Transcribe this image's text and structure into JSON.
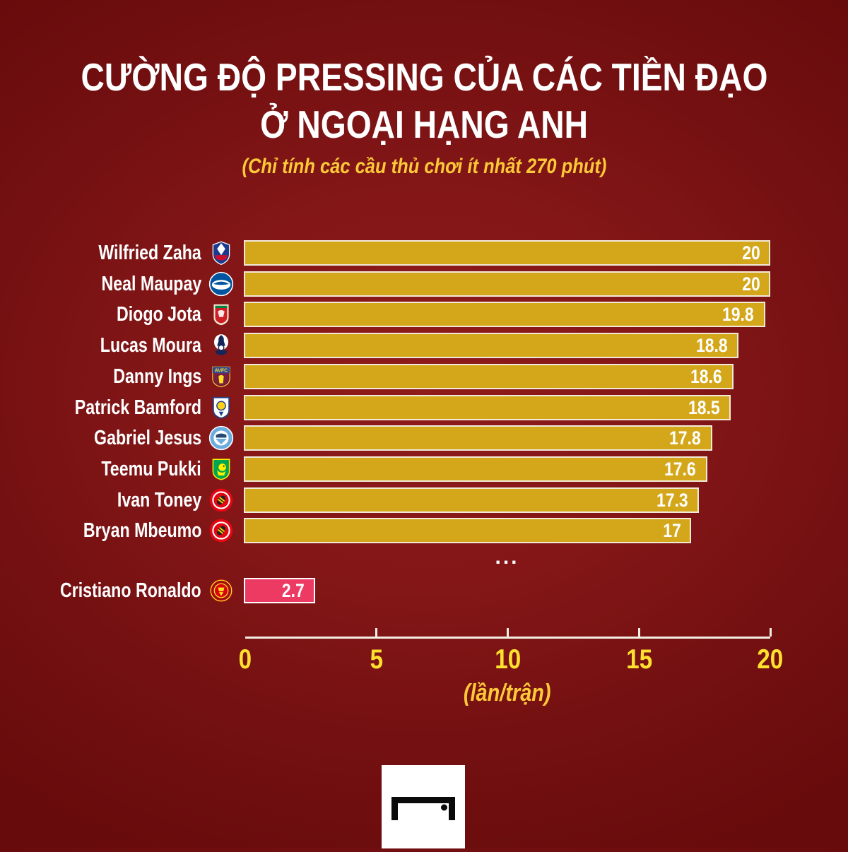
{
  "title": {
    "line1": "CƯỜNG ĐỘ PRESSING CỦA CÁC TIỀN ĐẠO",
    "line2": "Ở NGOẠI HẠNG ANH",
    "color": "#ffffff"
  },
  "subtitle": {
    "text": "(Chỉ tính các cầu thủ chơi ít nhất 270 phút)",
    "color": "#fdc938"
  },
  "chart_data": {
    "type": "bar",
    "orientation": "horizontal",
    "title": "CƯỜNG ĐỘ PRESSING CỦA CÁC TIỀN ĐẠO Ở NGOẠI HẠNG ANH",
    "subtitle": "(Chỉ tính các cầu thủ chơi ít nhất 270 phút)",
    "xlabel": "(lần/trận)",
    "xlim": [
      0,
      20
    ],
    "xticks": [
      0,
      5,
      10,
      15,
      20
    ],
    "grid": false,
    "legend": false,
    "ellipsis": "...",
    "categories": [
      "Wilfried Zaha",
      "Neal Maupay",
      "Diogo Jota",
      "Lucas Moura",
      "Danny Ings",
      "Patrick Bamford",
      "Gabriel Jesus",
      "Teemu Pukki",
      "Ivan Toney",
      "Bryan Mbeumo",
      "Cristiano Ronaldo"
    ],
    "values": [
      20,
      20,
      19.8,
      18.8,
      18.6,
      18.5,
      17.8,
      17.6,
      17.3,
      17,
      2.7
    ],
    "players": [
      {
        "name": "Wilfried Zaha",
        "club": "Crystal Palace",
        "badge": "crystal-palace-badge-icon",
        "value": 20,
        "label": "20",
        "highlight": false
      },
      {
        "name": "Neal Maupay",
        "club": "Brighton",
        "badge": "brighton-badge-icon",
        "value": 20,
        "label": "20",
        "highlight": false
      },
      {
        "name": "Diogo Jota",
        "club": "Liverpool",
        "badge": "liverpool-badge-icon",
        "value": 19.8,
        "label": "19.8",
        "highlight": false
      },
      {
        "name": "Lucas Moura",
        "club": "Tottenham",
        "badge": "tottenham-badge-icon",
        "value": 18.8,
        "label": "18.8",
        "highlight": false
      },
      {
        "name": "Danny Ings",
        "club": "Aston Villa",
        "badge": "aston-villa-badge-icon",
        "value": 18.6,
        "label": "18.6",
        "highlight": false
      },
      {
        "name": "Patrick Bamford",
        "club": "Leeds United",
        "badge": "leeds-united-badge-icon",
        "value": 18.5,
        "label": "18.5",
        "highlight": false
      },
      {
        "name": "Gabriel Jesus",
        "club": "Manchester City",
        "badge": "manchester-city-badge-icon",
        "value": 17.8,
        "label": "17.8",
        "highlight": false
      },
      {
        "name": "Teemu Pukki",
        "club": "Norwich City",
        "badge": "norwich-city-badge-icon",
        "value": 17.6,
        "label": "17.6",
        "highlight": false
      },
      {
        "name": "Ivan Toney",
        "club": "Brentford",
        "badge": "brentford-badge-icon",
        "value": 17.3,
        "label": "17.3",
        "highlight": false
      },
      {
        "name": "Bryan Mbeumo",
        "club": "Brentford",
        "badge": "brentford-badge-icon",
        "value": 17,
        "label": "17",
        "highlight": false
      },
      {
        "name": "Cristiano Ronaldo",
        "club": "Manchester United",
        "badge": "manchester-united-badge-icon",
        "value": 2.7,
        "label": "2.7",
        "highlight": true
      }
    ],
    "colors": {
      "bar": "#d4a71b",
      "bar_border": "#f1ead9",
      "highlight_bar": "#ec3a63",
      "highlight_border": "#ffffff",
      "value_label": "#ffffff",
      "player_label": "#ffffff",
      "axis": "#f3eee2",
      "tick_label": "#fee02e",
      "axis_label": "#fdc938",
      "title": "#ffffff",
      "subtitle": "#fdc938",
      "background_center": "#8f1b1c",
      "background_edge": "#680b0c"
    }
  },
  "footer": {
    "logo": "goal-logo-icon"
  }
}
